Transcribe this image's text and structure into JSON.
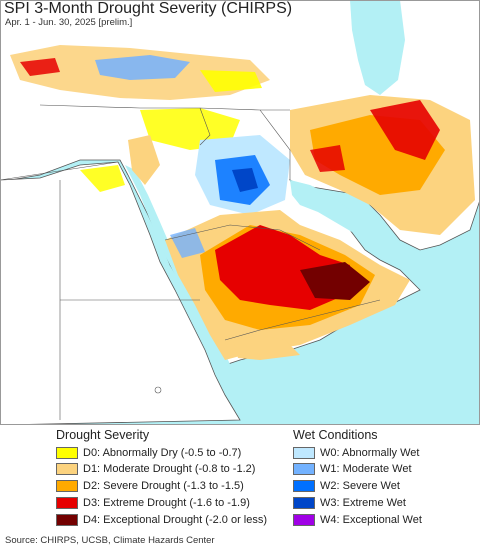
{
  "title": "SPI 3-Month Drought Severity (CHIRPS)",
  "subtitle": "Apr. 1 - Jun. 30, 2025 [prelim.]",
  "colors": {
    "ocean": "#b3f0f5",
    "land": "#ffffff",
    "border": "#555555",
    "d0": "#ffff00",
    "d1": "#fcd37f",
    "d2": "#ffaa00",
    "d3": "#e60000",
    "d4": "#730000",
    "w0": "#bfe8ff",
    "w1": "#73b2ff",
    "w2": "#0070ff",
    "w3": "#0046c8",
    "w4": "#a000e6"
  },
  "legend": {
    "drought_title": "Drought Severity",
    "wet_title": "Wet Conditions",
    "drought": [
      {
        "label": "D0: Abnormally Dry (-0.5 to -0.7)",
        "color": "#ffff00"
      },
      {
        "label": "D1: Moderate Drought (-0.8 to -1.2)",
        "color": "#fcd37f"
      },
      {
        "label": "D2: Severe Drought (-1.3 to -1.5)",
        "color": "#ffaa00"
      },
      {
        "label": "D3: Extreme Drought (-1.6 to -1.9)",
        "color": "#e60000"
      },
      {
        "label": "D4: Exceptional Drought (-2.0 or less)",
        "color": "#730000"
      }
    ],
    "wet": [
      {
        "label": "W0: Abnormally Wet",
        "color": "#bfe8ff"
      },
      {
        "label": "W1: Moderate Wet",
        "color": "#73b2ff"
      },
      {
        "label": "W2: Severe Wet",
        "color": "#0070ff"
      },
      {
        "label": "W3: Extreme Wet",
        "color": "#0046c8"
      },
      {
        "label": "W4: Exceptional Wet",
        "color": "#a000e6"
      }
    ]
  },
  "source": "Source: CHIRPS, UCSB, Climate Hazards Center"
}
